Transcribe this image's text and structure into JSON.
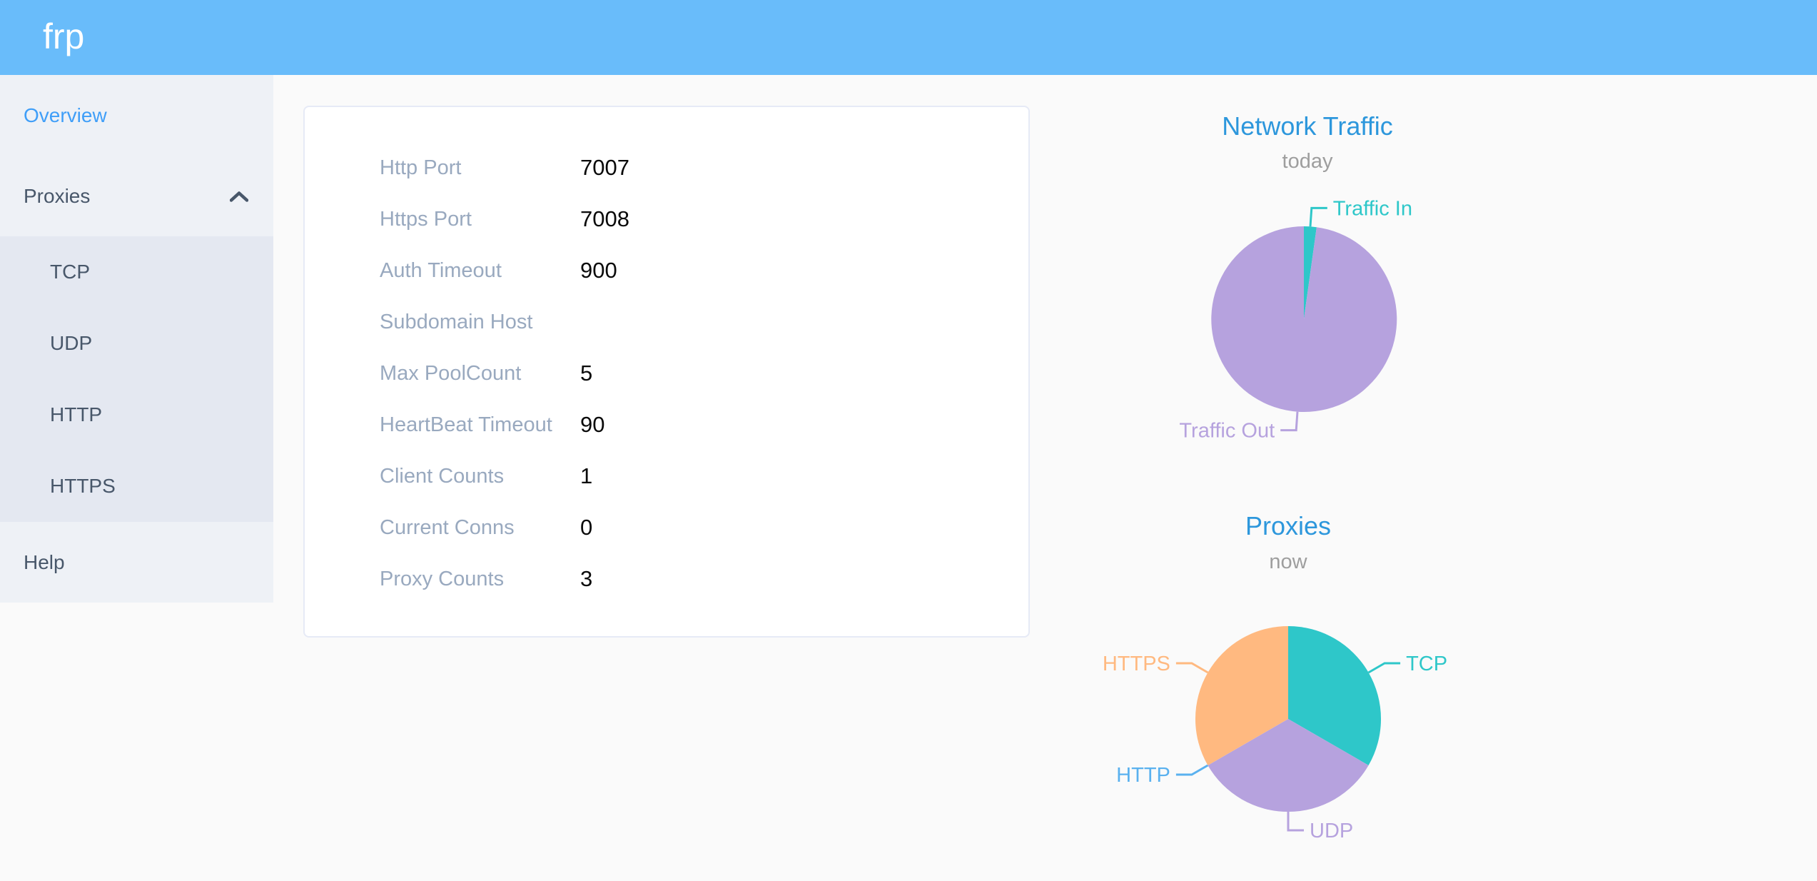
{
  "header": {
    "logo": "frp"
  },
  "sidebar": {
    "items": [
      {
        "label": "Overview",
        "active": true
      },
      {
        "label": "Proxies",
        "expanded": true,
        "children": [
          "TCP",
          "UDP",
          "HTTP",
          "HTTPS"
        ]
      },
      {
        "label": "Help"
      }
    ]
  },
  "overview_card": {
    "rows": [
      {
        "label": "Http Port",
        "value": "7007"
      },
      {
        "label": "Https Port",
        "value": "7008"
      },
      {
        "label": "Auth Timeout",
        "value": "900"
      },
      {
        "label": "Subdomain Host",
        "value": ""
      },
      {
        "label": "Max PoolCount",
        "value": "5"
      },
      {
        "label": "HeartBeat Timeout",
        "value": "90"
      },
      {
        "label": "Client Counts",
        "value": "1"
      },
      {
        "label": "Current Conns",
        "value": "0"
      },
      {
        "label": "Proxy Counts",
        "value": "3"
      }
    ]
  },
  "chart_data": [
    {
      "type": "pie",
      "title": "Network Traffic",
      "subtitle": "today",
      "legend_position": "callout-labels",
      "series": [
        {
          "name": "Traffic In",
          "value": 2.2,
          "color": "#2ec7c9"
        },
        {
          "name": "Traffic Out",
          "value": 97.8,
          "color": "#b6a2de"
        }
      ]
    },
    {
      "type": "pie",
      "title": "Proxies",
      "subtitle": "now",
      "legend_position": "callout-labels",
      "series": [
        {
          "name": "TCP",
          "value": 1,
          "color": "#2ec7c9"
        },
        {
          "name": "UDP",
          "value": 1,
          "color": "#b6a2de"
        },
        {
          "name": "HTTP",
          "value": 0,
          "color": "#5ab1ef"
        },
        {
          "name": "HTTPS",
          "value": 1,
          "color": "#ffb980"
        }
      ]
    }
  ],
  "colors": {
    "header_bg": "#69bcfa",
    "sidebar_bg": "#eef1f6",
    "submenu_bg": "#e4e8f1",
    "menu_text": "#48576a",
    "active_menu": "#3f9ef8",
    "chart_title": "#2d97dc",
    "subtitle": "#9e9e9e",
    "card_label": "#99a9bf",
    "card_value": "#0a0a0a",
    "page_bg": "#fafafa",
    "card_border": "#e6eaf6"
  }
}
